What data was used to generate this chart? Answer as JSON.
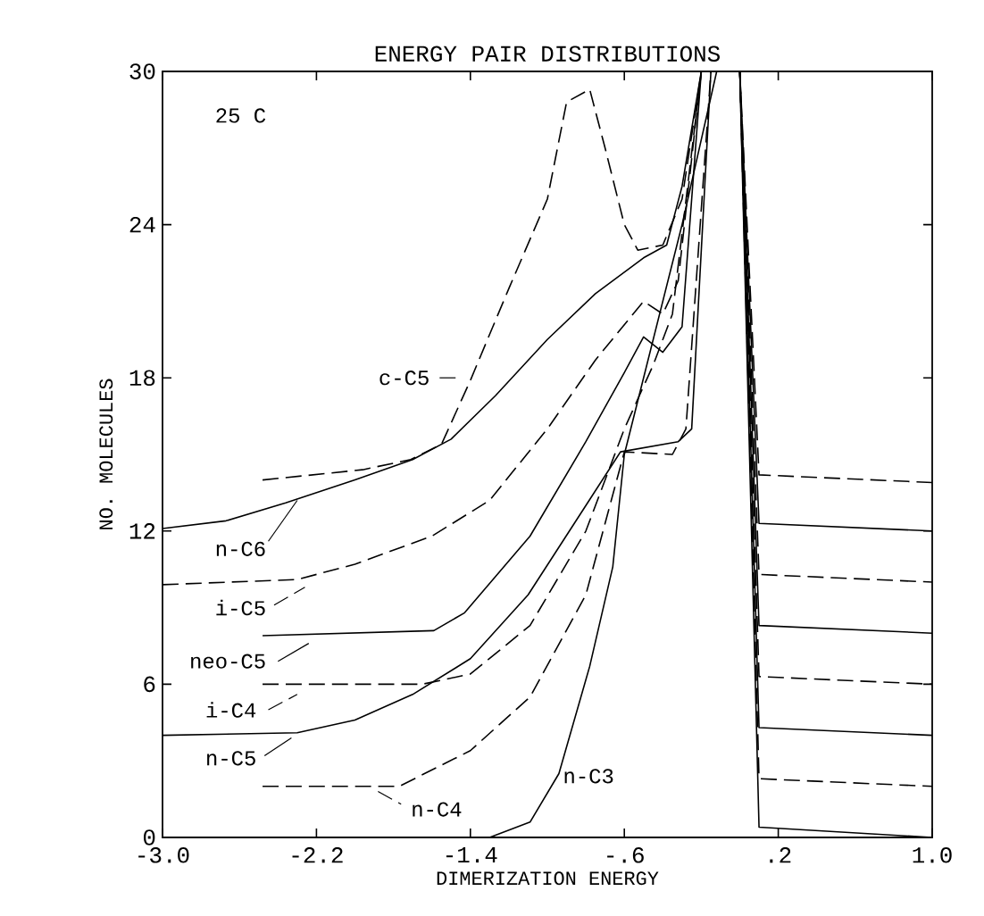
{
  "chart_data": {
    "type": "line",
    "title": "ENERGY PAIR DISTRIBUTIONS",
    "xlabel": "DIMERIZATION ENERGY",
    "ylabel": "NO. MOLECULES",
    "annotations": [
      "25 C"
    ],
    "xlim": [
      -3.0,
      1.0
    ],
    "ylim": [
      0,
      30
    ],
    "xticks": [
      {
        "value": -3.0,
        "label": "-3.0"
      },
      {
        "value": -2.2,
        "label": "-2.2"
      },
      {
        "value": -1.4,
        "label": "-1.4"
      },
      {
        "value": -0.6,
        "label": "-.6"
      },
      {
        "value": 0.2,
        "label": ".2"
      },
      {
        "value": 1.0,
        "label": "1.0"
      }
    ],
    "yticks": [
      0,
      6,
      12,
      18,
      24,
      30
    ],
    "grid": false,
    "legend": "left",
    "series": [
      {
        "name": "c-C5",
        "color": "#000000",
        "line_style": "dashed",
        "x": [
          -2.48,
          -1.96,
          -1.71,
          -1.55,
          -1.4,
          -1.2,
          -1.0,
          -0.9,
          -0.78,
          -0.7,
          -0.6,
          -0.53,
          -0.4,
          -0.3,
          -0.2,
          0.0,
          0.1,
          1.0
        ],
        "values": [
          14.0,
          14.4,
          14.8,
          15.4,
          17.9,
          21.5,
          25.0,
          28.8,
          29.3,
          27.0,
          24.0,
          23.0,
          23.2,
          25.0,
          30,
          30,
          14.2,
          13.9
        ]
      },
      {
        "name": "n-C6",
        "color": "#000000",
        "line_style": "solid",
        "x": [
          -3.0,
          -2.67,
          -2.36,
          -2.0,
          -1.7,
          -1.5,
          -1.27,
          -1.0,
          -0.75,
          -0.5,
          -0.38,
          -0.3,
          -0.2,
          0.0,
          0.1,
          1.0
        ],
        "values": [
          12.1,
          12.4,
          13.1,
          14.0,
          14.8,
          15.6,
          17.3,
          19.5,
          21.3,
          22.7,
          23.2,
          25.5,
          30,
          30,
          12.3,
          12.0
        ]
      },
      {
        "name": "i-C5",
        "color": "#000000",
        "line_style": "dashed",
        "x": [
          -3.0,
          -2.3,
          -2.0,
          -1.6,
          -1.3,
          -1.0,
          -0.75,
          -0.5,
          -0.4,
          -0.32,
          -0.2,
          0.0,
          0.1,
          1.0
        ],
        "values": [
          9.9,
          10.1,
          10.7,
          11.8,
          13.2,
          16.0,
          18.7,
          21.0,
          20.5,
          21.8,
          30,
          30,
          10.3,
          10.0
        ]
      },
      {
        "name": "neo-C5",
        "color": "#000000",
        "line_style": "solid",
        "x": [
          -2.48,
          -1.59,
          -1.43,
          -1.09,
          -0.8,
          -0.6,
          -0.5,
          -0.4,
          -0.3,
          -0.2,
          0.0,
          0.1,
          1.0
        ],
        "values": [
          7.9,
          8.1,
          8.8,
          11.8,
          15.5,
          18.2,
          19.6,
          19.0,
          20.0,
          30,
          30,
          8.3,
          8.0
        ]
      },
      {
        "name": "i-C4",
        "color": "#000000",
        "line_style": "dashed",
        "x": [
          -2.48,
          -1.65,
          -1.4,
          -1.09,
          -0.8,
          -0.6,
          -0.45,
          -0.35,
          -0.2,
          0.0,
          0.1,
          1.0
        ],
        "values": [
          6.0,
          6.0,
          6.4,
          8.3,
          12.0,
          16.0,
          18.5,
          20.5,
          30,
          30,
          6.3,
          6.0
        ]
      },
      {
        "name": "n-C5",
        "color": "#000000",
        "line_style": "solid",
        "x": [
          -3.0,
          -2.3,
          -2.0,
          -1.7,
          -1.4,
          -1.1,
          -0.8,
          -0.62,
          -0.32,
          -0.25,
          -0.15,
          0.0,
          0.1,
          1.0
        ],
        "values": [
          4.0,
          4.1,
          4.6,
          5.6,
          7.0,
          9.5,
          13.0,
          15.1,
          15.5,
          16.0,
          30,
          30,
          4.3,
          4.0
        ]
      },
      {
        "name": "n-C4",
        "color": "#000000",
        "line_style": "dashed",
        "x": [
          -2.48,
          -1.77,
          -1.4,
          -1.09,
          -0.8,
          -0.6,
          -0.35,
          -0.28,
          -0.15,
          0.0,
          0.1,
          1.0
        ],
        "values": [
          2.0,
          2.0,
          3.4,
          5.5,
          9.5,
          15.1,
          15.0,
          16.0,
          30,
          30,
          2.3,
          2.0
        ]
      },
      {
        "name": "n-C3",
        "color": "#000000",
        "line_style": "solid",
        "x": [
          -1.3,
          -1.09,
          -0.94,
          -0.78,
          -0.66,
          -0.6,
          -0.3,
          -0.12,
          0.0,
          0.1,
          1.0
        ],
        "values": [
          0.0,
          0.6,
          2.5,
          6.7,
          10.6,
          15.0,
          24.0,
          30,
          30,
          0.4,
          0.0
        ]
      }
    ]
  }
}
